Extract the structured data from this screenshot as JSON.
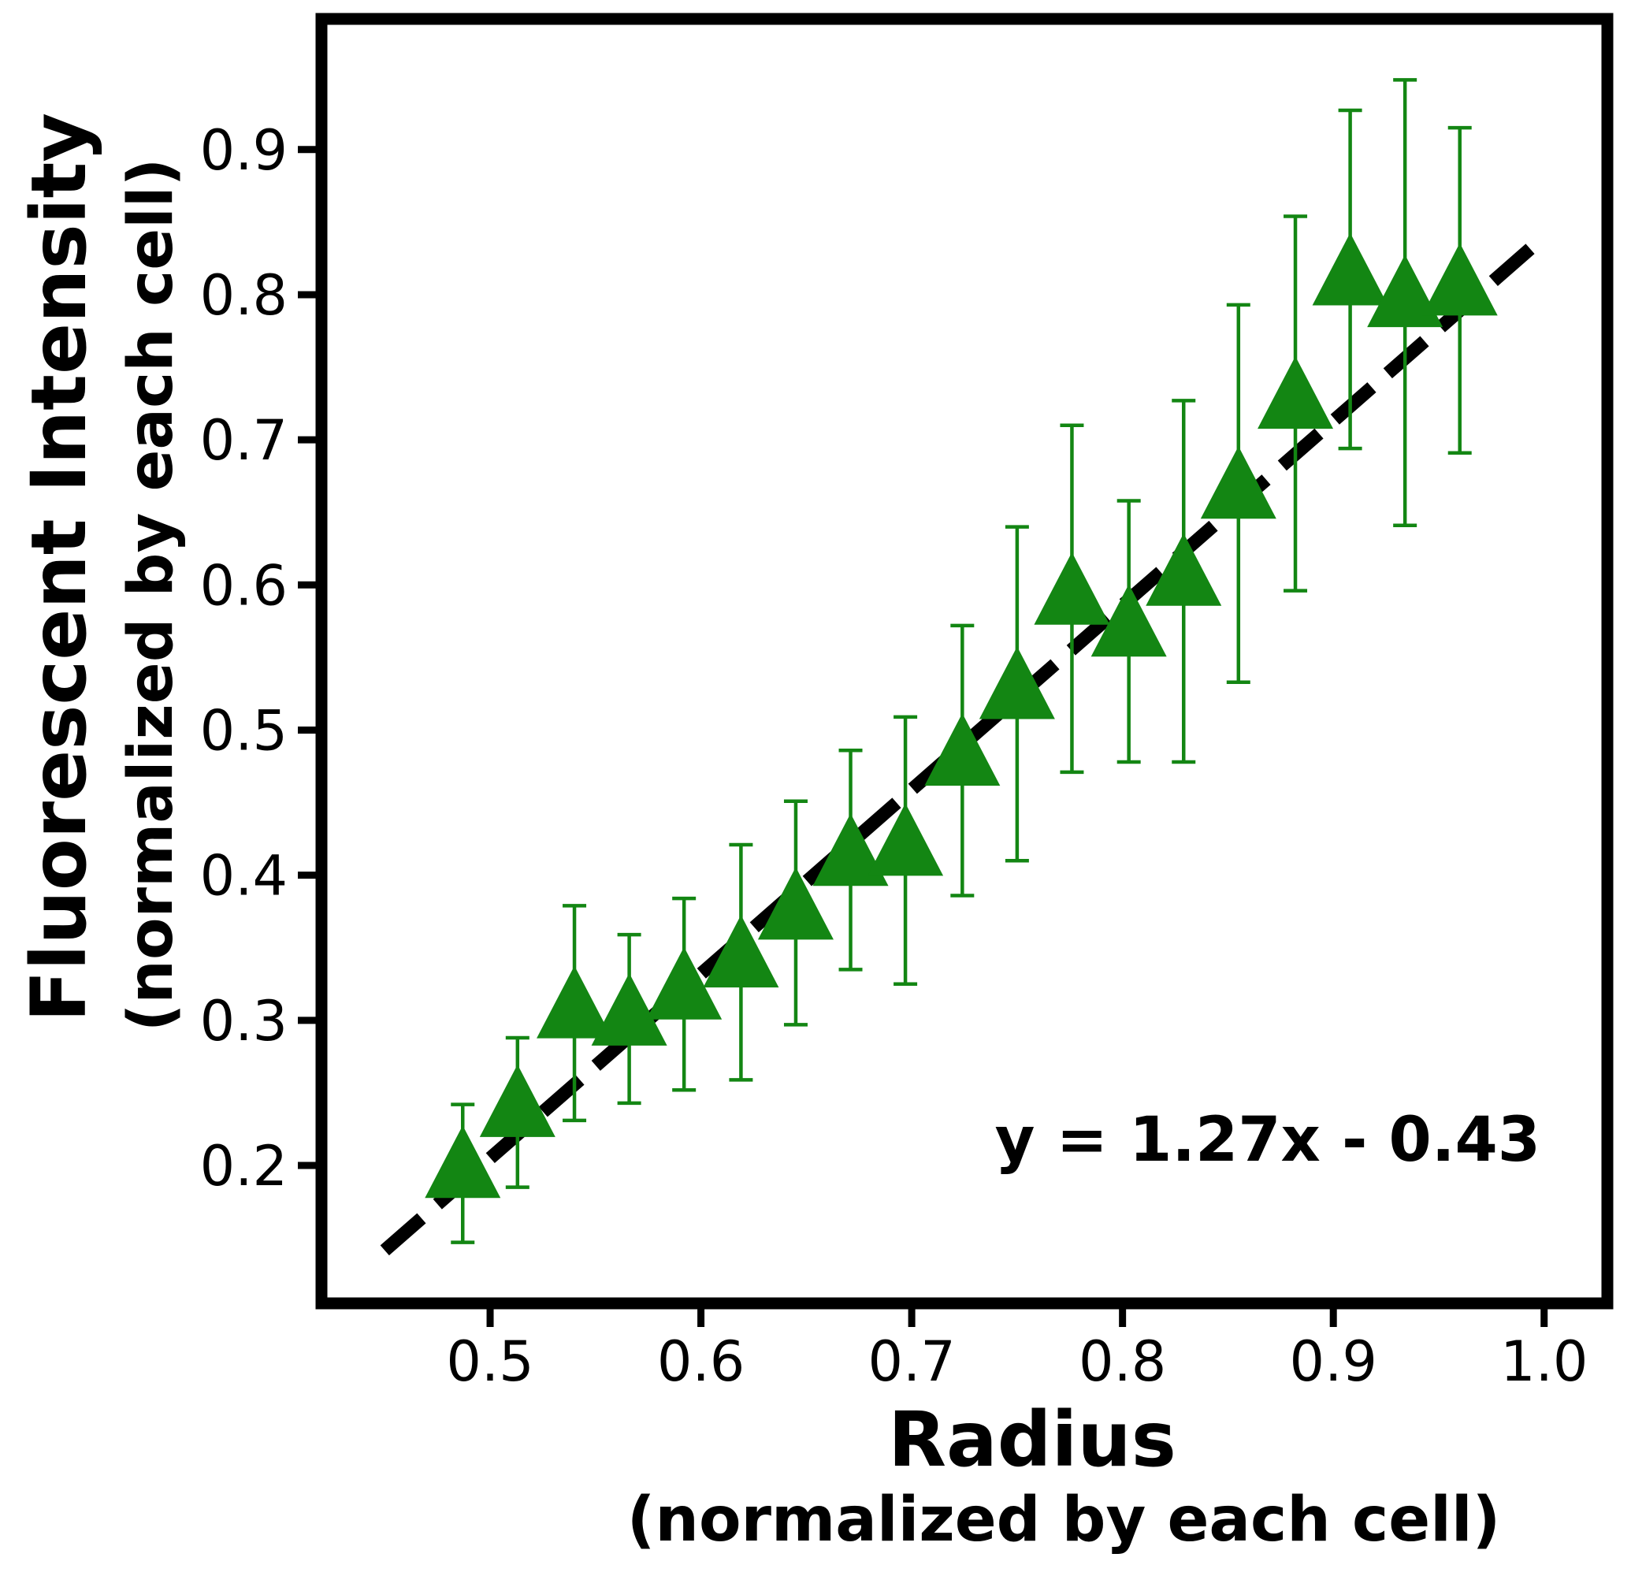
{
  "chart_data": {
    "type": "scatter",
    "xlabel": "Radius",
    "xlabel_sub": "(normalized by each cell)",
    "ylabel": "Fluorescent Intensity",
    "ylabel_sub": "(normalized by each cell)",
    "xlim": [
      0.42,
      1.03
    ],
    "ylim": [
      0.105,
      0.99
    ],
    "xticks": [
      "0.5",
      "0.6",
      "0.7",
      "0.8",
      "0.9",
      "1.0"
    ],
    "yticks": [
      "0.2",
      "0.3",
      "0.4",
      "0.5",
      "0.6",
      "0.7",
      "0.8",
      "0.9"
    ],
    "grid": false,
    "marker_color": "#138613",
    "fit_line_color": "#000000",
    "fit": {
      "equation": "y = 1.27x - 0.43",
      "slope": 1.27,
      "intercept": -0.43,
      "x_range": [
        0.45,
        1.0
      ]
    },
    "points": [
      {
        "x": 0.487,
        "y": 0.195,
        "yerr_low": 0.147,
        "yerr_high": 0.242
      },
      {
        "x": 0.513,
        "y": 0.237,
        "yerr_low": 0.185,
        "yerr_high": 0.288
      },
      {
        "x": 0.54,
        "y": 0.305,
        "yerr_low": 0.231,
        "yerr_high": 0.379
      },
      {
        "x": 0.566,
        "y": 0.3,
        "yerr_low": 0.243,
        "yerr_high": 0.359
      },
      {
        "x": 0.592,
        "y": 0.318,
        "yerr_low": 0.252,
        "yerr_high": 0.384
      },
      {
        "x": 0.619,
        "y": 0.34,
        "yerr_low": 0.259,
        "yerr_high": 0.421
      },
      {
        "x": 0.645,
        "y": 0.373,
        "yerr_low": 0.297,
        "yerr_high": 0.451
      },
      {
        "x": 0.671,
        "y": 0.41,
        "yerr_low": 0.335,
        "yerr_high": 0.486
      },
      {
        "x": 0.697,
        "y": 0.417,
        "yerr_low": 0.325,
        "yerr_high": 0.509
      },
      {
        "x": 0.724,
        "y": 0.479,
        "yerr_low": 0.386,
        "yerr_high": 0.572
      },
      {
        "x": 0.75,
        "y": 0.525,
        "yerr_low": 0.41,
        "yerr_high": 0.64
      },
      {
        "x": 0.776,
        "y": 0.59,
        "yerr_low": 0.471,
        "yerr_high": 0.71
      },
      {
        "x": 0.803,
        "y": 0.568,
        "yerr_low": 0.478,
        "yerr_high": 0.658
      },
      {
        "x": 0.829,
        "y": 0.603,
        "yerr_low": 0.478,
        "yerr_high": 0.727
      },
      {
        "x": 0.855,
        "y": 0.663,
        "yerr_low": 0.533,
        "yerr_high": 0.793
      },
      {
        "x": 0.882,
        "y": 0.725,
        "yerr_low": 0.596,
        "yerr_high": 0.854
      },
      {
        "x": 0.908,
        "y": 0.81,
        "yerr_low": 0.694,
        "yerr_high": 0.927
      },
      {
        "x": 0.934,
        "y": 0.795,
        "yerr_low": 0.641,
        "yerr_high": 0.948
      },
      {
        "x": 0.96,
        "y": 0.803,
        "yerr_low": 0.691,
        "yerr_high": 0.915
      }
    ]
  }
}
